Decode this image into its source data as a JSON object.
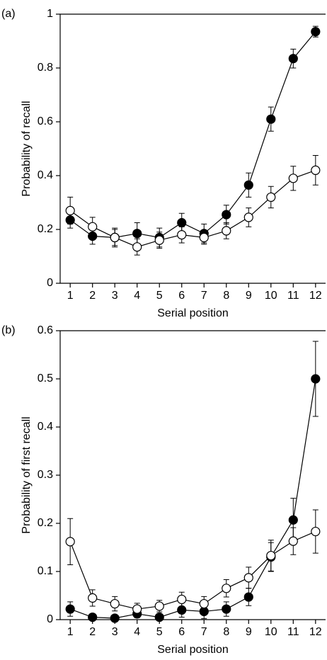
{
  "chart_data": [
    {
      "type": "line",
      "panel_label": "(a)",
      "x_label": "Serial position",
      "y_label": "Probability of recall",
      "x": [
        1,
        2,
        3,
        4,
        5,
        6,
        7,
        8,
        9,
        10,
        11,
        12
      ],
      "xlim": [
        0.55,
        12.45
      ],
      "xticks": [
        1,
        2,
        3,
        4,
        5,
        6,
        7,
        8,
        9,
        10,
        11,
        12
      ],
      "ylim": [
        0,
        1
      ],
      "yticks": [
        0,
        0.2,
        0.4,
        0.6,
        0.8,
        1
      ],
      "series": [
        {
          "color": "#000000",
          "marker_fill": "#000000",
          "values": [
            0.235,
            0.175,
            0.17,
            0.185,
            0.17,
            0.225,
            0.185,
            0.255,
            0.365,
            0.61,
            0.835,
            0.935
          ],
          "errors": [
            0.03,
            0.03,
            0.035,
            0.04,
            0.035,
            0.035,
            0.035,
            0.035,
            0.045,
            0.045,
            0.035,
            0.02
          ]
        },
        {
          "color": "#000000",
          "marker_fill": "#ffffff",
          "values": [
            0.27,
            0.21,
            0.17,
            0.135,
            0.16,
            0.18,
            0.17,
            0.195,
            0.245,
            0.32,
            0.39,
            0.42
          ],
          "errors": [
            0.05,
            0.035,
            0.03,
            0.03,
            0.03,
            0.03,
            0.025,
            0.03,
            0.035,
            0.04,
            0.045,
            0.055
          ]
        }
      ]
    },
    {
      "type": "line",
      "panel_label": "(b)",
      "x_label": "Serial position",
      "y_label": "Probability of first recall",
      "x": [
        1,
        2,
        3,
        4,
        5,
        6,
        7,
        8,
        9,
        10,
        11,
        12
      ],
      "xlim": [
        0.55,
        12.45
      ],
      "xticks": [
        1,
        2,
        3,
        4,
        5,
        6,
        7,
        8,
        9,
        10,
        11,
        12
      ],
      "ylim": [
        0,
        0.6
      ],
      "yticks": [
        0,
        0.1,
        0.2,
        0.3,
        0.4,
        0.5,
        0.6
      ],
      "series": [
        {
          "color": "#000000",
          "marker_fill": "#000000",
          "values": [
            0.022,
            0.005,
            0.003,
            0.012,
            0.005,
            0.02,
            0.017,
            0.022,
            0.047,
            0.13,
            0.207,
            0.5
          ],
          "errors": [
            0.015,
            0.005,
            0.003,
            0.008,
            0.005,
            0.015,
            0.015,
            0.015,
            0.018,
            0.03,
            0.045,
            0.078
          ]
        },
        {
          "color": "#000000",
          "marker_fill": "#ffffff",
          "values": [
            0.162,
            0.045,
            0.033,
            0.022,
            0.028,
            0.042,
            0.033,
            0.065,
            0.087,
            0.133,
            0.163,
            0.183
          ],
          "errors": [
            0.048,
            0.017,
            0.015,
            0.012,
            0.012,
            0.015,
            0.015,
            0.018,
            0.022,
            0.032,
            0.028,
            0.045
          ]
        }
      ]
    }
  ]
}
